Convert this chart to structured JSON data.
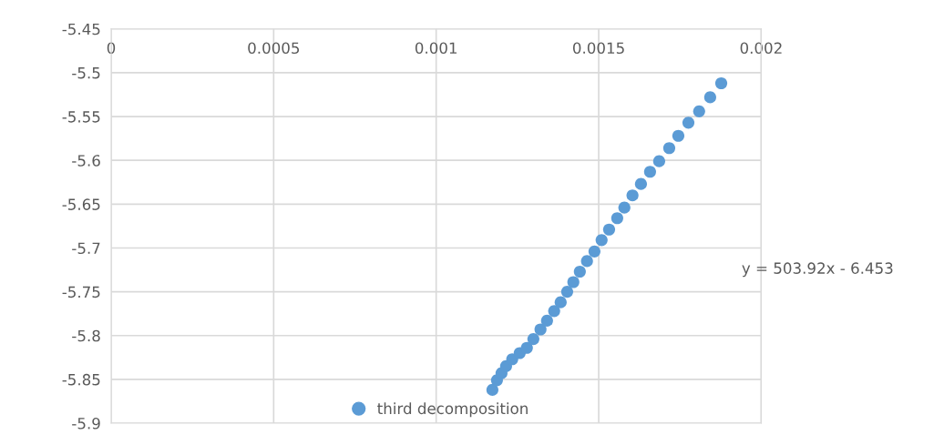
{
  "chart_data": {
    "type": "scatter",
    "x": [
      0.001173,
      0.001187,
      0.001201,
      0.001215,
      0.001234,
      0.001257,
      0.001279,
      0.001299,
      0.001321,
      0.001341,
      0.001363,
      0.001383,
      0.001403,
      0.001422,
      0.001442,
      0.001464,
      0.001487,
      0.001509,
      0.001532,
      0.001557,
      0.001579,
      0.001604,
      0.00163,
      0.001658,
      0.001686,
      0.001717,
      0.001745,
      0.001776,
      0.001809,
      0.001843,
      0.001877
    ],
    "series": [
      {
        "name": "third decomposition",
        "color": "#5b9bd5",
        "values": [
          -5.862,
          -5.851,
          -5.843,
          -5.835,
          -5.827,
          -5.82,
          -5.814,
          -5.804,
          -5.793,
          -5.783,
          -5.772,
          -5.762,
          -5.75,
          -5.739,
          -5.727,
          -5.715,
          -5.704,
          -5.691,
          -5.679,
          -5.666,
          -5.654,
          -5.64,
          -5.627,
          -5.613,
          -5.601,
          -5.586,
          -5.572,
          -5.557,
          -5.544,
          -5.528,
          -5.512
        ]
      }
    ],
    "xlim": [
      0,
      0.002
    ],
    "xticks": [
      0,
      0.0005,
      0.001,
      0.0015,
      0.002
    ],
    "ylim": [
      -5.9,
      -5.45
    ],
    "yticks": [
      -5.9,
      -5.85,
      -5.8,
      -5.75,
      -5.7,
      -5.65,
      -5.6,
      -5.55,
      -5.5,
      -5.45
    ],
    "annotations": [
      "y = 503.92x - 6.453"
    ],
    "grid": true,
    "legend": "bottom",
    "marker": "circle"
  }
}
